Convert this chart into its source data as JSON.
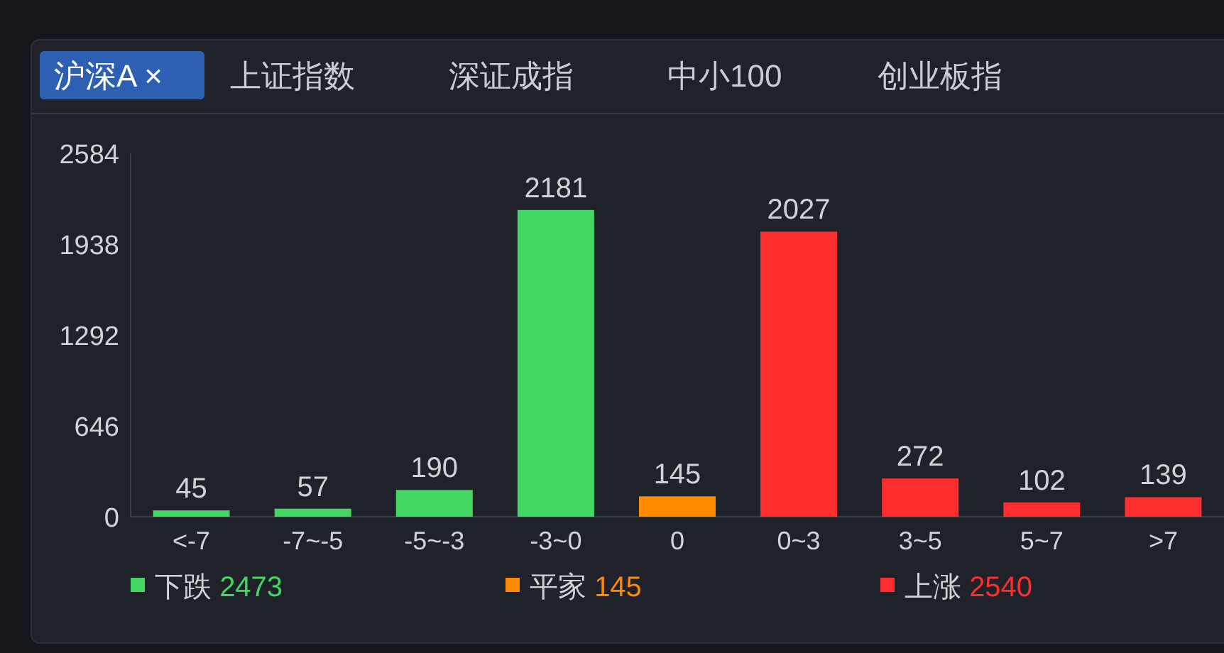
{
  "chart_data": {
    "type": "bar",
    "categories": [
      "<-7",
      "-7~-5",
      "-5~-3",
      "-3~0",
      "0",
      "0~3",
      "3~5",
      "5~7",
      ">7"
    ],
    "values": [
      45,
      57,
      190,
      2181,
      145,
      2027,
      272,
      102,
      139
    ],
    "colors": [
      "#44d662",
      "#44d662",
      "#44d662",
      "#44d662",
      "#ff8a00",
      "#ff2e2e",
      "#ff2e2e",
      "#ff2e2e",
      "#ff2e2e"
    ],
    "ylim": [
      0,
      2584
    ],
    "yticks": [
      0,
      646,
      1292,
      1938,
      2584
    ],
    "data_labels": true,
    "grid": false,
    "annotations": [
      "沪深A ×",
      "上证指数",
      "深证成指",
      "中小100",
      "创业板指",
      "下跌 2473",
      "平家 145",
      "上涨 2540"
    ]
  }
}
